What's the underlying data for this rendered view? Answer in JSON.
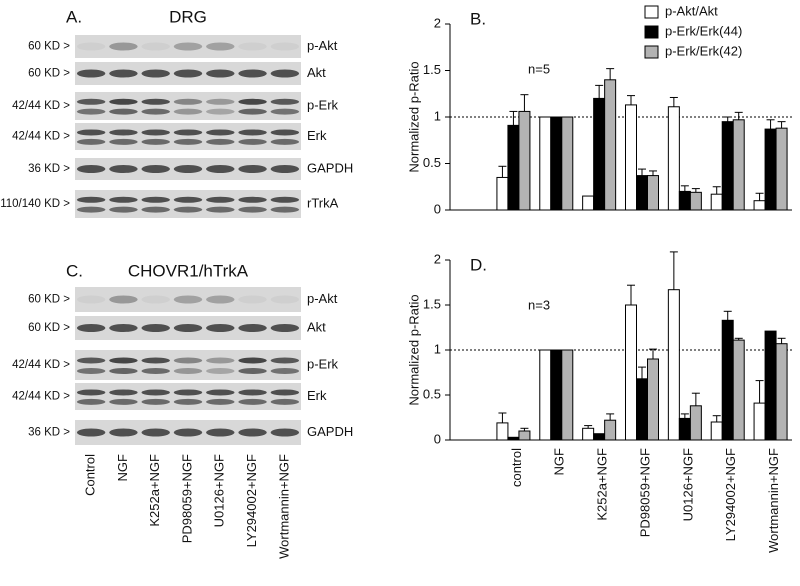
{
  "blots": [
    {
      "label": "A.",
      "title": "DRG",
      "rows": [
        {
          "size": "60 KD >",
          "protein": "p-Akt"
        },
        {
          "size": "60 KD >",
          "protein": "Akt"
        },
        {
          "size": "42/44 KD >",
          "protein": "p-Erk"
        },
        {
          "size": "42/44 KD >",
          "protein": "Erk"
        },
        {
          "size": "36 KD >",
          "protein": "GAPDH"
        },
        {
          "size": "110/140 KD >",
          "protein": "rTrkA"
        }
      ]
    },
    {
      "label": "C.",
      "title": "CHOVR1/hTrkA",
      "rows": [
        {
          "size": "60 KD >",
          "protein": "p-Akt"
        },
        {
          "size": "60 KD >",
          "protein": "Akt"
        },
        {
          "size": "42/44 KD >",
          "protein": "p-Erk"
        },
        {
          "size": "42/44 KD >",
          "protein": "Erk"
        },
        {
          "size": "36 KD >",
          "protein": "GAPDH"
        }
      ]
    }
  ],
  "lanes": [
    "Control",
    "NGF",
    "K252a+NGF",
    "PD98059+NGF",
    "U0126+NGF",
    "LY294002+NGF",
    "Wortmannin+NGF"
  ],
  "chart_data": [
    {
      "type": "bar",
      "title": "B.",
      "annotation": "n=5",
      "ylabel": "Normalized p-Ratio",
      "categories": [
        null,
        null,
        null,
        null,
        null,
        null,
        null
      ],
      "ylim": [
        0,
        2
      ],
      "yticks": [
        0,
        0.5,
        1,
        1.5,
        2
      ],
      "ref_line": 1,
      "legend": "upper right",
      "series": [
        {
          "name": "p-Akt/Akt",
          "color": "#ffffff",
          "values": [
            0.35,
            1,
            0.15,
            1.13,
            1.11,
            0.17,
            0.1
          ],
          "errors": [
            0.12,
            null,
            null,
            0.1,
            0.1,
            0.08,
            0.08
          ]
        },
        {
          "name": "p-Erk/Erk(44)",
          "color": "#000000",
          "values": [
            0.91,
            1,
            1.2,
            0.37,
            0.2,
            0.95,
            0.87
          ],
          "errors": [
            0.15,
            null,
            0.14,
            0.07,
            0.06,
            0.05,
            0.1
          ]
        },
        {
          "name": "p-Erk/Erk(42)",
          "color": "#b3b3b3",
          "values": [
            1.06,
            1,
            1.4,
            0.37,
            0.19,
            0.97,
            0.88
          ],
          "errors": [
            0.18,
            null,
            0.12,
            0.05,
            0.04,
            0.08,
            0.07
          ]
        }
      ]
    },
    {
      "type": "bar",
      "title": "D.",
      "annotation": "n=3",
      "ylabel": "Normalized p-Ratio",
      "categories": [
        "control",
        "NGF",
        "K252a+NGF",
        "PD98059+NGF",
        "U0126+NGF",
        "LY294002+NGF",
        "Wortmannin+NGF"
      ],
      "ylim": [
        0,
        2
      ],
      "yticks": [
        0,
        0.5,
        1,
        1.5,
        2
      ],
      "ref_line": 1,
      "series": [
        {
          "color": "#ffffff",
          "values": [
            0.19,
            1,
            0.13,
            1.5,
            1.67,
            0.2,
            0.41
          ],
          "errors": [
            0.11,
            null,
            0.03,
            0.22,
            0.42,
            0.07,
            0.25
          ]
        },
        {
          "color": "#000000",
          "values": [
            0.03,
            1,
            0.07,
            0.68,
            0.24,
            1.33,
            1.21
          ],
          "errors": [
            null,
            null,
            null,
            0.13,
            0.05,
            0.1,
            null
          ]
        },
        {
          "color": "#b3b3b3",
          "values": [
            0.1,
            1,
            0.22,
            0.9,
            0.38,
            1.11,
            1.07
          ],
          "errors": [
            0.03,
            null,
            0.07,
            0.11,
            0.14,
            0.02,
            0.06
          ]
        }
      ]
    }
  ]
}
